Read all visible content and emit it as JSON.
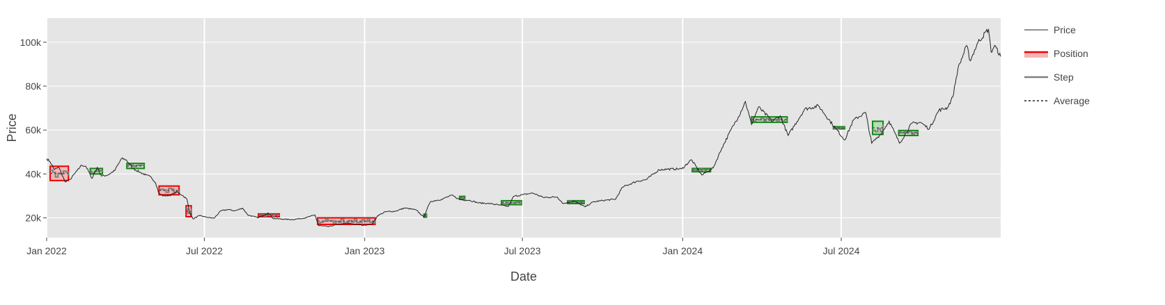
{
  "chart_data": {
    "type": "line",
    "title": "",
    "xlabel": "Date",
    "ylabel": "Price",
    "xlim": [
      "2022-01-01",
      "2024-12-31"
    ],
    "ylim": [
      11000,
      111000
    ],
    "x_ticks": [
      {
        "date": "2022-01-01",
        "label": "Jan 2022"
      },
      {
        "date": "2022-07-01",
        "label": "Jul 2022"
      },
      {
        "date": "2023-01-01",
        "label": "Jan 2023"
      },
      {
        "date": "2023-07-01",
        "label": "Jul 2023"
      },
      {
        "date": "2024-01-01",
        "label": "Jan 2024"
      },
      {
        "date": "2024-07-01",
        "label": "Jul 2024"
      }
    ],
    "y_ticks": [
      {
        "value": 20000,
        "label": "20k"
      },
      {
        "value": 40000,
        "label": "40k"
      },
      {
        "value": 60000,
        "label": "60k"
      },
      {
        "value": 80000,
        "label": "80k"
      },
      {
        "value": 100000,
        "label": "100k"
      }
    ],
    "grid": true,
    "legend_position": "right",
    "colors": {
      "background": "#e5e5e5",
      "grid": "#ffffff",
      "price": "#222222",
      "loss": "#ee0000",
      "loss_fill": "#f4b6b6",
      "profit": "#118811",
      "profit_fill": "#b7dcb7",
      "step": "#808080",
      "average": "#555555"
    },
    "legend": [
      {
        "label": "Price",
        "style": "line"
      },
      {
        "label": "Position",
        "style": "band"
      },
      {
        "label": "Step",
        "style": "step"
      },
      {
        "label": "Average",
        "style": "dash"
      }
    ],
    "series": [
      {
        "name": "Price",
        "points": [
          [
            "2022-01-01",
            47000
          ],
          [
            "2022-01-05",
            45500
          ],
          [
            "2022-01-10",
            42000
          ],
          [
            "2022-01-15",
            43000
          ],
          [
            "2022-01-22",
            36500
          ],
          [
            "2022-01-28",
            37500
          ],
          [
            "2022-02-05",
            41500
          ],
          [
            "2022-02-10",
            44000
          ],
          [
            "2022-02-15",
            43500
          ],
          [
            "2022-02-22",
            38000
          ],
          [
            "2022-02-28",
            43000
          ],
          [
            "2022-03-05",
            39000
          ],
          [
            "2022-03-12",
            39500
          ],
          [
            "2022-03-20",
            41500
          ],
          [
            "2022-03-28",
            47000
          ],
          [
            "2022-04-02",
            46500
          ],
          [
            "2022-04-10",
            42500
          ],
          [
            "2022-04-18",
            40800
          ],
          [
            "2022-04-25",
            39500
          ],
          [
            "2022-05-01",
            38500
          ],
          [
            "2022-05-06",
            36000
          ],
          [
            "2022-05-10",
            31000
          ],
          [
            "2022-05-15",
            30000
          ],
          [
            "2022-05-22",
            30200
          ],
          [
            "2022-05-31",
            31800
          ],
          [
            "2022-06-06",
            30200
          ],
          [
            "2022-06-11",
            28500
          ],
          [
            "2022-06-14",
            22500
          ],
          [
            "2022-06-18",
            19500
          ],
          [
            "2022-06-25",
            21000
          ],
          [
            "2022-07-05",
            20200
          ],
          [
            "2022-07-12",
            19800
          ],
          [
            "2022-07-20",
            23200
          ],
          [
            "2022-07-28",
            23800
          ],
          [
            "2022-08-05",
            23200
          ],
          [
            "2022-08-14",
            24400
          ],
          [
            "2022-08-20",
            21300
          ],
          [
            "2022-08-31",
            20100
          ],
          [
            "2022-09-09",
            21400
          ],
          [
            "2022-09-12",
            22300
          ],
          [
            "2022-09-18",
            19700
          ],
          [
            "2022-09-30",
            19400
          ],
          [
            "2022-10-10",
            19200
          ],
          [
            "2022-10-25",
            20000
          ],
          [
            "2022-11-05",
            21300
          ],
          [
            "2022-11-09",
            16500
          ],
          [
            "2022-11-21",
            16000
          ],
          [
            "2022-12-01",
            17100
          ],
          [
            "2022-12-15",
            17400
          ],
          [
            "2022-12-31",
            16600
          ],
          [
            "2023-01-10",
            17300
          ],
          [
            "2023-01-16",
            21000
          ],
          [
            "2023-01-25",
            22800
          ],
          [
            "2023-02-05",
            23000
          ],
          [
            "2023-02-16",
            24500
          ],
          [
            "2023-03-01",
            23600
          ],
          [
            "2023-03-10",
            20300
          ],
          [
            "2023-03-14",
            24500
          ],
          [
            "2023-03-18",
            27500
          ],
          [
            "2023-03-30",
            28400
          ],
          [
            "2023-04-11",
            30300
          ],
          [
            "2023-04-20",
            28300
          ],
          [
            "2023-05-01",
            28000
          ],
          [
            "2023-05-12",
            26800
          ],
          [
            "2023-05-25",
            26500
          ],
          [
            "2023-06-05",
            25800
          ],
          [
            "2023-06-15",
            25200
          ],
          [
            "2023-06-21",
            29800
          ],
          [
            "2023-07-01",
            30500
          ],
          [
            "2023-07-13",
            31300
          ],
          [
            "2023-07-25",
            29300
          ],
          [
            "2023-08-10",
            29500
          ],
          [
            "2023-08-17",
            26500
          ],
          [
            "2023-08-29",
            27700
          ],
          [
            "2023-09-11",
            25000
          ],
          [
            "2023-09-20",
            27200
          ],
          [
            "2023-10-01",
            27900
          ],
          [
            "2023-10-16",
            28500
          ],
          [
            "2023-10-24",
            34000
          ],
          [
            "2023-11-09",
            36600
          ],
          [
            "2023-11-20",
            37400
          ],
          [
            "2023-12-05",
            41900
          ],
          [
            "2023-12-15",
            42200
          ],
          [
            "2023-12-31",
            42300
          ],
          [
            "2024-01-11",
            46500
          ],
          [
            "2024-01-23",
            39500
          ],
          [
            "2024-02-05",
            42700
          ],
          [
            "2024-02-15",
            51800
          ],
          [
            "2024-02-28",
            62000
          ],
          [
            "2024-03-05",
            66000
          ],
          [
            "2024-03-13",
            73000
          ],
          [
            "2024-03-20",
            62500
          ],
          [
            "2024-03-28",
            70500
          ],
          [
            "2024-04-13",
            64000
          ],
          [
            "2024-04-22",
            66500
          ],
          [
            "2024-05-01",
            57500
          ],
          [
            "2024-05-20",
            69500
          ],
          [
            "2024-06-05",
            71000
          ],
          [
            "2024-06-24",
            61000
          ],
          [
            "2024-07-05",
            55500
          ],
          [
            "2024-07-15",
            64500
          ],
          [
            "2024-07-29",
            68000
          ],
          [
            "2024-08-05",
            54000
          ],
          [
            "2024-08-15",
            58000
          ],
          [
            "2024-08-25",
            64000
          ],
          [
            "2024-09-06",
            54000
          ],
          [
            "2024-09-20",
            63000
          ],
          [
            "2024-09-30",
            63500
          ],
          [
            "2024-10-10",
            60500
          ],
          [
            "2024-10-21",
            69000
          ],
          [
            "2024-10-31",
            70200
          ],
          [
            "2024-11-06",
            75000
          ],
          [
            "2024-11-12",
            88000
          ],
          [
            "2024-11-22",
            98500
          ],
          [
            "2024-11-26",
            91500
          ],
          [
            "2024-12-05",
            100000
          ],
          [
            "2024-12-17",
            106000
          ],
          [
            "2024-12-20",
            95500
          ],
          [
            "2024-12-24",
            98500
          ],
          [
            "2024-12-31",
            93500
          ]
        ]
      }
    ],
    "positions": [
      {
        "start": "2022-01-05",
        "end": "2022-01-26",
        "low": 37000,
        "high": 43500,
        "outcome": "loss"
      },
      {
        "start": "2022-02-20",
        "end": "2022-03-06",
        "low": 40000,
        "high": 42500,
        "outcome": "profit"
      },
      {
        "start": "2022-04-03",
        "end": "2022-04-23",
        "low": 42500,
        "high": 44800,
        "outcome": "profit"
      },
      {
        "start": "2022-05-10",
        "end": "2022-06-02",
        "low": 30500,
        "high": 34500,
        "outcome": "loss"
      },
      {
        "start": "2022-06-10",
        "end": "2022-06-16",
        "low": 20500,
        "high": 25500,
        "outcome": "loss"
      },
      {
        "start": "2022-09-01",
        "end": "2022-09-25",
        "low": 20500,
        "high": 21800,
        "outcome": "loss"
      },
      {
        "start": "2022-11-08",
        "end": "2023-01-13",
        "low": 17000,
        "high": 20000,
        "outcome": "loss"
      },
      {
        "start": "2023-03-10",
        "end": "2023-03-13",
        "low": 20300,
        "high": 21700,
        "outcome": "profit"
      },
      {
        "start": "2023-04-20",
        "end": "2023-04-26",
        "low": 28500,
        "high": 29800,
        "outcome": "profit"
      },
      {
        "start": "2023-06-07",
        "end": "2023-06-30",
        "low": 26000,
        "high": 27800,
        "outcome": "profit"
      },
      {
        "start": "2023-08-22",
        "end": "2023-09-10",
        "low": 26500,
        "high": 27800,
        "outcome": "profit"
      },
      {
        "start": "2024-01-12",
        "end": "2024-02-02",
        "low": 41000,
        "high": 42500,
        "outcome": "profit"
      },
      {
        "start": "2024-03-20",
        "end": "2024-04-30",
        "low": 63500,
        "high": 66000,
        "outcome": "profit"
      },
      {
        "start": "2024-06-22",
        "end": "2024-07-05",
        "low": 60500,
        "high": 61500,
        "outcome": "profit"
      },
      {
        "start": "2024-08-06",
        "end": "2024-08-18",
        "low": 58000,
        "high": 64000,
        "outcome": "profit"
      },
      {
        "start": "2024-09-05",
        "end": "2024-09-27",
        "low": 57500,
        "high": 59800,
        "outcome": "profit"
      }
    ]
  }
}
